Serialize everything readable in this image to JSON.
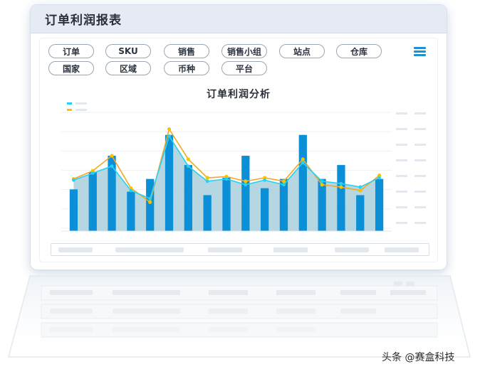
{
  "report": {
    "title": "订单利润报表"
  },
  "filters": {
    "row1": [
      "订单",
      "SKU",
      "销售",
      "销售小组",
      "站点",
      "仓库"
    ],
    "row2": [
      "国家",
      "区域",
      "币种",
      "平台"
    ]
  },
  "menu_icon": "hamburger-menu-icon",
  "chart_data": {
    "type": "bar",
    "title": "订单利润分析",
    "xlabel": "",
    "ylabel": "",
    "ylim": [
      0,
      100
    ],
    "grid": true,
    "legend_position": "top-left",
    "colors": {
      "bar": "#0b8fd6",
      "area": "#a9cfdc",
      "cyan_line": "#27d2f0",
      "orange_line": "#f5a623",
      "yellow_dots": "#f5c400"
    },
    "bars": [
      36,
      51,
      65,
      34,
      45,
      83,
      57,
      31,
      46,
      65,
      37,
      45,
      83,
      45,
      57,
      31,
      45
    ],
    "series": [
      {
        "values": [
          44,
          50,
          56,
          35,
          28,
          82,
          56,
          43,
          45,
          40,
          44,
          40,
          59,
          43,
          41,
          38,
          46
        ]
      },
      {
        "values": [
          45,
          52,
          65,
          37,
          25,
          88,
          62,
          46,
          47,
          43,
          46,
          43,
          62,
          40,
          38,
          35,
          48
        ]
      }
    ]
  },
  "watermark": "头条 @赛盒科技",
  "colors": {
    "accent": "#0b8fd6",
    "header_bg": "#e6ebf3"
  }
}
